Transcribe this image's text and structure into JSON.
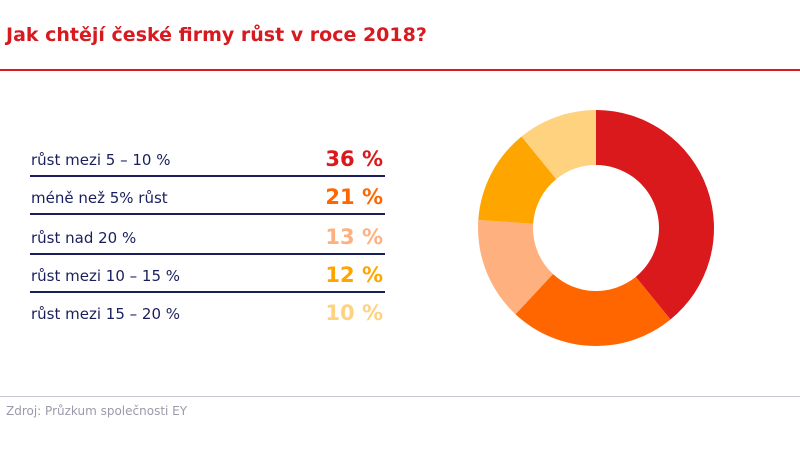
{
  "chart_data": {
    "type": "pie",
    "title": "Jak chtějí české firmy růst v roce 2018?",
    "donut": true,
    "categories": [
      "růst mezi 5 – 10 %",
      "méně než 5% růst",
      "růst nad 20 %",
      "růst mezi 10 – 15 %",
      "růst mezi 15 – 20 %"
    ],
    "values": [
      36,
      21,
      13,
      12,
      10
    ],
    "value_labels": [
      "36 %",
      "21 %",
      "13 %",
      "12 %",
      "10 %"
    ],
    "colors": [
      "#d9191c",
      "#ff6600",
      "#ffb07f",
      "#ffa500",
      "#ffd27f"
    ],
    "legend": "left"
  },
  "source": "Zdroj: Průzkum společnosti EY"
}
